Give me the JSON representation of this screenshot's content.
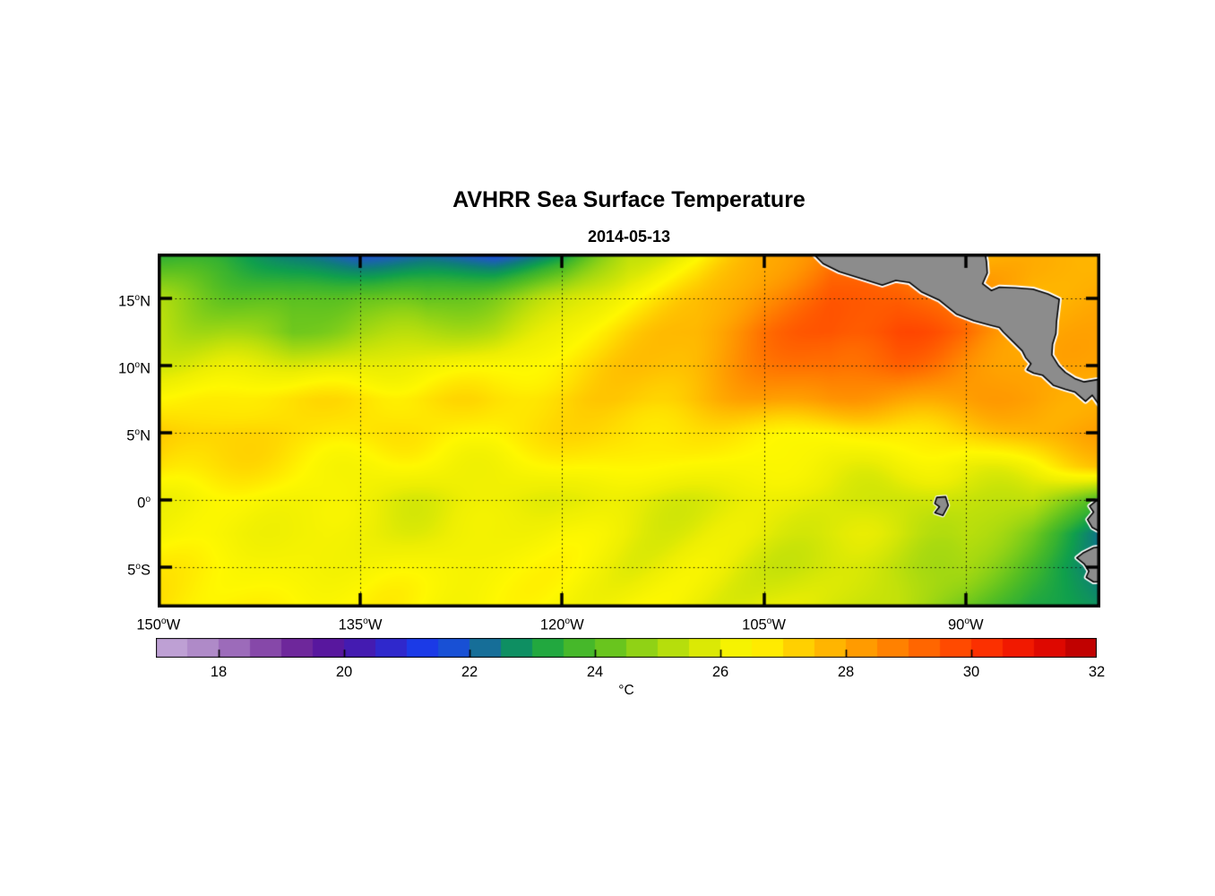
{
  "chart_data": {
    "type": "heatmap",
    "title": "AVHRR Sea Surface Temperature",
    "subtitle": "2014-05-13",
    "colorbar_label": "°C",
    "axes": {
      "lon_range": [
        -150.05,
        -80.0
      ],
      "lat_range": [
        -8.0,
        18.35
      ],
      "grid_style": "dotted",
      "x_ticks": [
        {
          "lon": -150,
          "text": "150",
          "deg": "o",
          "hemi": "W"
        },
        {
          "lon": -135,
          "text": "135",
          "deg": "o",
          "hemi": "W"
        },
        {
          "lon": -120,
          "text": "120",
          "deg": "o",
          "hemi": "W"
        },
        {
          "lon": -105,
          "text": "105",
          "deg": "o",
          "hemi": "W"
        },
        {
          "lon": -90,
          "text": "90",
          "deg": "o",
          "hemi": "W"
        }
      ],
      "y_ticks": [
        {
          "lat": 15,
          "text": "15",
          "deg": "o",
          "hemi": "N"
        },
        {
          "lat": 10,
          "text": "10",
          "deg": "o",
          "hemi": "N"
        },
        {
          "lat": 5,
          "text": "5",
          "deg": "o",
          "hemi": "N"
        },
        {
          "lat": 0,
          "text": "0",
          "deg": "o",
          "hemi": ""
        },
        {
          "lat": -5,
          "text": "5",
          "deg": "o",
          "hemi": "S"
        }
      ]
    },
    "colorbar": {
      "min": 17,
      "max": 32,
      "segment_step": 0.5,
      "ticks": [
        18,
        20,
        22,
        24,
        26,
        28,
        30,
        32
      ]
    },
    "colormap": [
      [
        17.0,
        "#C5A9D9"
      ],
      [
        17.5,
        "#B797CE"
      ],
      [
        18.0,
        "#A67CC2"
      ],
      [
        18.5,
        "#9159B1"
      ],
      [
        19.0,
        "#7A36A0"
      ],
      [
        19.5,
        "#621796"
      ],
      [
        20.0,
        "#4E17A5"
      ],
      [
        20.5,
        "#3A1FBC"
      ],
      [
        21.0,
        "#2531DC"
      ],
      [
        21.5,
        "#1242F2"
      ],
      [
        22.0,
        "#1D5DB9"
      ],
      [
        22.5,
        "#0E7F77"
      ],
      [
        23.0,
        "#0F9F4D"
      ],
      [
        23.5,
        "#36B231"
      ],
      [
        24.0,
        "#57BF22"
      ],
      [
        24.5,
        "#7CCC1A"
      ],
      [
        25.0,
        "#A3D811"
      ],
      [
        25.5,
        "#C9E308"
      ],
      [
        26.0,
        "#EDEE02"
      ],
      [
        26.5,
        "#FFF800"
      ],
      [
        27.0,
        "#FFDE00"
      ],
      [
        27.5,
        "#FFC200"
      ],
      [
        28.0,
        "#FFA800"
      ],
      [
        28.5,
        "#FF8E00"
      ],
      [
        29.0,
        "#FF7300"
      ],
      [
        29.5,
        "#FF5800"
      ],
      [
        30.0,
        "#FF3D00"
      ],
      [
        30.5,
        "#F92400"
      ],
      [
        31.0,
        "#EA0E00"
      ],
      [
        31.5,
        "#D20300"
      ],
      [
        32.0,
        "#B10000"
      ]
    ],
    "sst_grid": {
      "lons": [
        -150,
        -145,
        -140,
        -135,
        -130,
        -125,
        -120,
        -115,
        -110,
        -105,
        -100,
        -95,
        -90,
        -85,
        -80
      ],
      "lats": [
        18.35,
        15,
        12.5,
        10,
        7.5,
        5,
        2.5,
        0,
        -2.5,
        -5,
        -8
      ],
      "values": [
        [
          23.3,
          23.0,
          22.5,
          21.9,
          22.2,
          21.7,
          22.6,
          25.2,
          26.2,
          27.8,
          29.2,
          28.4,
          27.9,
          27.7,
          27.6
        ],
        [
          24.8,
          24.2,
          23.9,
          24.3,
          23.8,
          24.6,
          25.4,
          26.4,
          27.3,
          28.6,
          29.4,
          29.3,
          28.6,
          27.7,
          27.9
        ],
        [
          25.3,
          24.9,
          24.2,
          25.0,
          25.1,
          25.4,
          26.2,
          27.0,
          27.7,
          28.9,
          29.6,
          29.8,
          29.3,
          28.0,
          27.9
        ],
        [
          25.8,
          25.8,
          25.7,
          26.0,
          26.3,
          26.5,
          26.9,
          27.3,
          27.8,
          28.5,
          29.3,
          29.4,
          28.7,
          28.1,
          28.0
        ],
        [
          26.7,
          26.8,
          26.9,
          27.0,
          27.1,
          27.0,
          27.2,
          27.4,
          27.7,
          28.1,
          28.4,
          28.3,
          28.2,
          28.2,
          27.9
        ],
        [
          27.3,
          27.2,
          27.0,
          27.0,
          26.9,
          26.8,
          26.9,
          27.0,
          26.9,
          26.8,
          26.6,
          26.9,
          27.3,
          27.8,
          28.0
        ],
        [
          27.0,
          26.8,
          26.6,
          26.5,
          26.4,
          26.4,
          26.5,
          26.4,
          26.3,
          26.2,
          26.2,
          26.3,
          26.1,
          26.4,
          27.2
        ],
        [
          26.4,
          26.3,
          26.3,
          26.1,
          26.0,
          26.0,
          26.1,
          25.9,
          25.9,
          25.8,
          25.9,
          25.7,
          25.6,
          25.4,
          23.8
        ],
        [
          26.4,
          26.3,
          26.3,
          26.1,
          26.1,
          26.1,
          26.3,
          26.1,
          26.0,
          26.0,
          25.9,
          25.7,
          25.4,
          24.2,
          22.4
        ],
        [
          26.7,
          26.6,
          26.4,
          26.3,
          26.3,
          26.3,
          26.3,
          26.1,
          26.1,
          25.9,
          25.6,
          25.3,
          24.9,
          23.6,
          22.3
        ],
        [
          26.9,
          26.7,
          26.6,
          26.4,
          26.4,
          26.4,
          26.3,
          26.3,
          26.1,
          26.0,
          25.6,
          25.3,
          24.3,
          23.2,
          22.8
        ]
      ]
    },
    "land": {
      "fill": "#8C8C8C",
      "outline": "#000000",
      "coast_fringe": "#FFFFFF",
      "polygons": {
        "central_america": [
          [
            -101.6,
            18.6
          ],
          [
            -100.6,
            17.6
          ],
          [
            -99.4,
            17.0
          ],
          [
            -97.8,
            16.5
          ],
          [
            -96.2,
            16.0
          ],
          [
            -95.2,
            16.35
          ],
          [
            -94.2,
            16.2
          ],
          [
            -93.3,
            15.5
          ],
          [
            -92.0,
            14.9
          ],
          [
            -90.7,
            13.85
          ],
          [
            -89.4,
            13.35
          ],
          [
            -88.1,
            13.0
          ],
          [
            -87.5,
            12.85
          ],
          [
            -87.2,
            12.5
          ],
          [
            -86.5,
            11.8
          ],
          [
            -85.8,
            11.1
          ],
          [
            -85.55,
            10.6
          ],
          [
            -85.15,
            10.15
          ],
          [
            -85.45,
            9.7
          ],
          [
            -84.95,
            9.45
          ],
          [
            -84.3,
            9.3
          ],
          [
            -83.5,
            8.55
          ],
          [
            -82.6,
            8.25
          ],
          [
            -81.9,
            8.05
          ],
          [
            -81.1,
            7.35
          ],
          [
            -80.6,
            7.8
          ],
          [
            -80.1,
            7.1
          ],
          [
            -79.3,
            7.0
          ],
          [
            -79.3,
            9.1
          ],
          [
            -80.3,
            8.95
          ],
          [
            -81.2,
            8.8
          ],
          [
            -81.9,
            9.05
          ],
          [
            -82.6,
            9.5
          ],
          [
            -83.1,
            10.0
          ],
          [
            -83.6,
            10.8
          ],
          [
            -83.55,
            11.6
          ],
          [
            -83.3,
            12.4
          ],
          [
            -83.25,
            13.3
          ],
          [
            -83.05,
            14.95
          ],
          [
            -83.9,
            15.35
          ],
          [
            -85.0,
            15.7
          ],
          [
            -86.3,
            15.8
          ],
          [
            -87.5,
            15.85
          ],
          [
            -88.1,
            15.6
          ],
          [
            -88.75,
            16.1
          ],
          [
            -88.4,
            16.9
          ],
          [
            -88.45,
            17.7
          ],
          [
            -88.6,
            18.6
          ]
        ],
        "ecuador": [
          [
            -79.3,
            0.15
          ],
          [
            -80.3,
            -0.05
          ],
          [
            -80.8,
            -0.45
          ],
          [
            -80.5,
            -0.9
          ],
          [
            -80.95,
            -1.45
          ],
          [
            -80.6,
            -2.05
          ],
          [
            -80.05,
            -2.35
          ],
          [
            -79.3,
            -2.5
          ]
        ],
        "peru": [
          [
            -79.3,
            -3.4
          ],
          [
            -80.5,
            -3.55
          ],
          [
            -81.3,
            -3.95
          ],
          [
            -81.75,
            -4.3
          ],
          [
            -81.2,
            -4.75
          ],
          [
            -80.85,
            -5.3
          ],
          [
            -81.05,
            -5.75
          ],
          [
            -80.5,
            -6.1
          ],
          [
            -79.3,
            -6.05
          ]
        ],
        "galapagos": [
          [
            -92.15,
            0.2
          ],
          [
            -91.5,
            0.25
          ],
          [
            -91.3,
            -0.4
          ],
          [
            -91.7,
            -1.15
          ],
          [
            -92.3,
            -0.95
          ],
          [
            -91.95,
            -0.5
          ],
          [
            -92.3,
            -0.25
          ]
        ]
      }
    }
  }
}
